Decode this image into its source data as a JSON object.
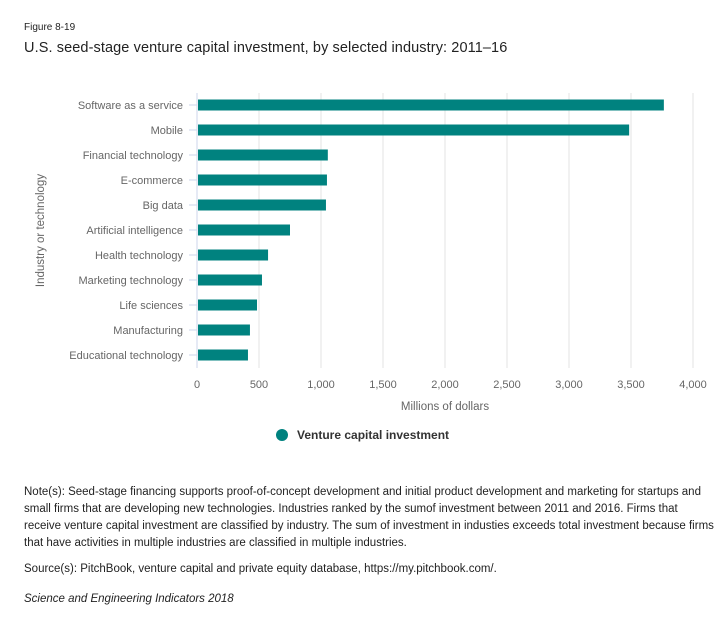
{
  "figure_label": "Figure 8-19",
  "title": "U.S. seed-stage venture capital investment, by selected industry: 2011–16",
  "legend": {
    "label": "Venture capital investment",
    "color": "#00827f"
  },
  "note": "Note(s): Seed-stage financing supports proof-of-concept development and initial product development and marketing for startups and small firms that are developing new technologies.   Industries ranked by the sumof investment between 2011 and 2016. Firms that receive venture capital investment are classified by industry. The sum of investment in industies exceeds total investment because firms that have activities in multiple industries are classified in multiple industries.",
  "source": "Source(s): PitchBook, venture capital and private equity database, https://my.pitchbook.com/.",
  "citation": "Science and Engineering Indicators 2018",
  "chart_data": {
    "type": "bar",
    "orientation": "horizontal",
    "title": "U.S. seed-stage venture capital investment, by selected industry: 2011–16",
    "xlabel": "Millions of dollars",
    "ylabel": "Industry or technology",
    "xlim": [
      0,
      4000
    ],
    "xticks": [
      0,
      500,
      1000,
      1500,
      2000,
      2500,
      3000,
      3500,
      4000
    ],
    "xtick_labels": [
      "0",
      "500",
      "1,000",
      "1,500",
      "2,000",
      "2,500",
      "3,000",
      "3,500",
      "4,000"
    ],
    "grid": true,
    "legend_position": "bottom-center",
    "categories": [
      "Software as a service",
      "Mobile",
      "Financial technology",
      "E-commerce",
      "Big data",
      "Artificial intelligence",
      "Health technology",
      "Marketing technology",
      "Life sciences",
      "Manufacturing",
      "Educational technology"
    ],
    "series": [
      {
        "name": "Venture capital investment",
        "color": "#00827f",
        "values": [
          3765,
          3485,
          1055,
          1048,
          1040,
          750,
          573,
          524,
          484,
          427,
          411
        ]
      }
    ]
  }
}
